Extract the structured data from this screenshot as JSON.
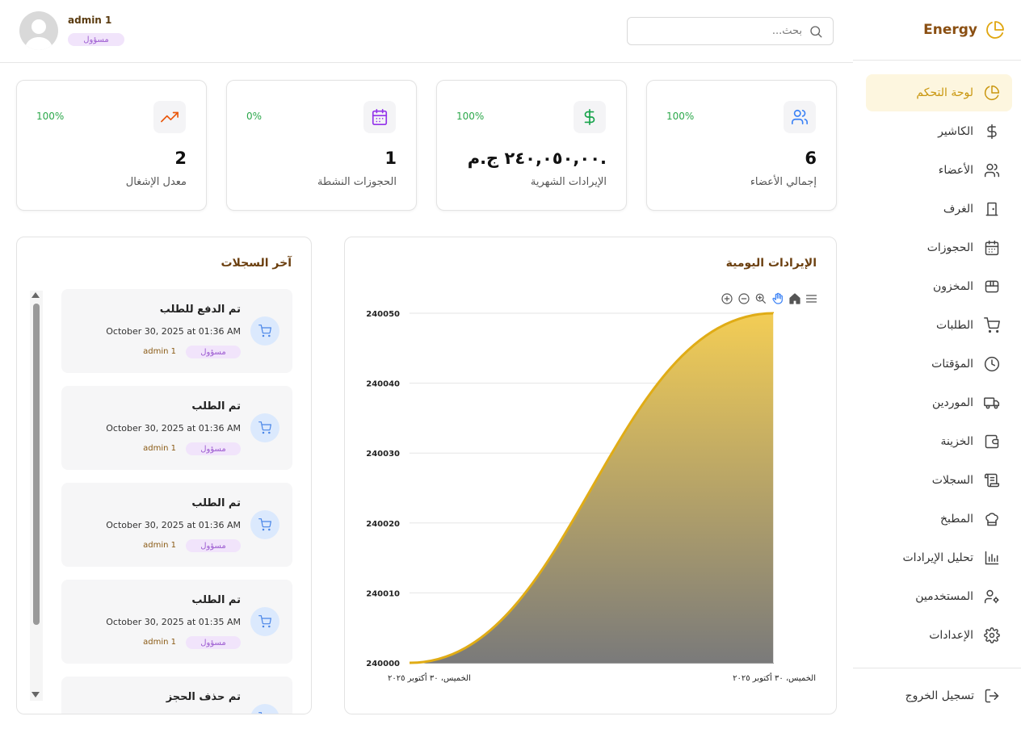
{
  "brand": {
    "name": "Energy"
  },
  "sidebar": {
    "items": [
      {
        "label": "لوحة التحكم",
        "icon": "dashboard-pie-icon",
        "active": true
      },
      {
        "label": "الكاشير",
        "icon": "dollar-icon"
      },
      {
        "label": "الأعضاء",
        "icon": "users-icon"
      },
      {
        "label": "الغرف",
        "icon": "door-icon"
      },
      {
        "label": "الحجوزات",
        "icon": "calendar-icon"
      },
      {
        "label": "المخزون",
        "icon": "box-icon"
      },
      {
        "label": "الطلبات",
        "icon": "cart-icon"
      },
      {
        "label": "المؤقتات",
        "icon": "clock-icon"
      },
      {
        "label": "الموردين",
        "icon": "truck-icon"
      },
      {
        "label": "الخزينة",
        "icon": "wallet-icon"
      },
      {
        "label": "السجلات",
        "icon": "scroll-icon"
      },
      {
        "label": "المطبخ",
        "icon": "chef-hat-icon"
      },
      {
        "label": "تحليل الإيرادات",
        "icon": "bar-chart-icon"
      },
      {
        "label": "المستخدمين",
        "icon": "user-cog-icon"
      },
      {
        "label": "الإعدادات",
        "icon": "gear-icon"
      }
    ],
    "logout_label": "تسجيل الخروج"
  },
  "header": {
    "search_placeholder": "بحث...",
    "user_name": "admin 1",
    "user_role": "مسؤول"
  },
  "stats": [
    {
      "label": "إجمالي الأعضاء",
      "value": "6",
      "percent": "100%",
      "icon": "users-icon",
      "color": "#3b82f6"
    },
    {
      "label": "الإيرادات الشهرية",
      "value": "٢٤٠,٠٥٠,٠٠ ج.م.",
      "percent": "100%",
      "icon": "dollar-icon",
      "color": "#16a34a"
    },
    {
      "label": "الحجوزات النشطة",
      "value": "1",
      "percent": "0%",
      "icon": "calendar-icon",
      "color": "#9333ea"
    },
    {
      "label": "معدل الإشغال",
      "value": "2",
      "percent": "100%",
      "icon": "trending-up-icon",
      "color": "#ea580c"
    }
  ],
  "logs": {
    "title": "آخر السجلات",
    "items": [
      {
        "title": "تم الدفع للطلب",
        "time": "October 30, 2025 at 01:36 AM",
        "role": "مسؤول",
        "user": "admin 1"
      },
      {
        "title": "تم الطلب",
        "time": "October 30, 2025 at 01:36 AM",
        "role": "مسؤول",
        "user": "admin 1"
      },
      {
        "title": "تم الطلب",
        "time": "October 30, 2025 at 01:36 AM",
        "role": "مسؤول",
        "user": "admin 1"
      },
      {
        "title": "تم الطلب",
        "time": "October 30, 2025 at 01:35 AM",
        "role": "مسؤول",
        "user": "admin 1"
      },
      {
        "title": "تم حذف الحجز",
        "time": "",
        "role": "",
        "user": ""
      }
    ]
  },
  "chart_data": {
    "type": "area",
    "title": "الإيرادات اليومية",
    "x": [
      "الخميس، ٣٠ أكتوبر ٢٠٢٥",
      "الخميس، ٣٠ أكتوبر ٢٠٢٥"
    ],
    "series": [
      {
        "values": [
          240000,
          240050
        ]
      }
    ],
    "ylim": [
      240000,
      240050
    ],
    "yticks": [
      240000,
      240010,
      240020,
      240030,
      240040,
      240050
    ],
    "grid": true,
    "colors": {
      "line": "#e0ac16",
      "fill_top": "#f3cd55",
      "fill_bottom": "#7a7a7a"
    }
  }
}
